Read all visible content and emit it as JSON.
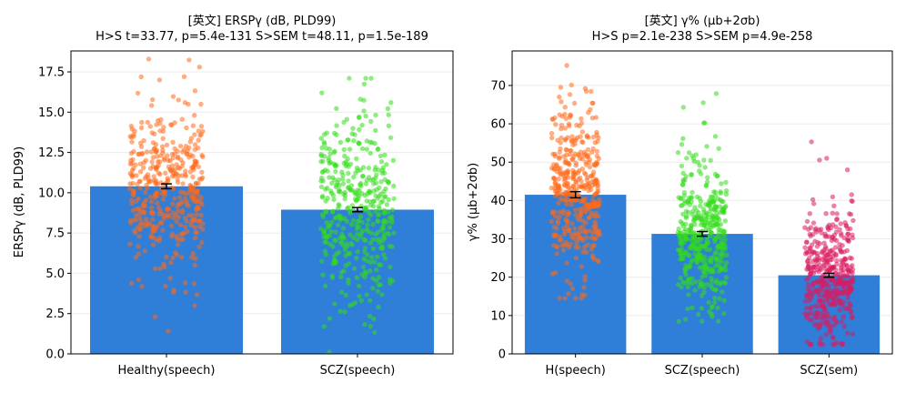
{
  "chart_data": [
    {
      "type": "bar",
      "title": "[英文] ERSPγ (dB, PLD99)",
      "subtitle": "H>S t=33.77, p=5.4e-131 S>SEM t=48.11, p=1.5e-189",
      "xlabel": "",
      "ylabel": "ERSPγ (dB, PLD99)",
      "categories": [
        "Healthy(speech)",
        "SCZ(speech)"
      ],
      "values": [
        10.4,
        8.95
      ],
      "errors": [
        0.15,
        0.13
      ],
      "ylim": [
        0,
        18.8
      ],
      "yticks": [
        0.0,
        2.5,
        5.0,
        7.5,
        10.0,
        12.5,
        15.0,
        17.5
      ],
      "ytick_labels": [
        "0.0",
        "2.5",
        "5.0",
        "7.5",
        "10.0",
        "12.5",
        "15.0",
        "17.5"
      ],
      "grid": "horizontal",
      "colors": {
        "bar": "#2f7ed8",
        "points": [
          "#ff6a1a",
          "#33dd1a"
        ]
      },
      "scatter": [
        {
          "n": 420,
          "center": 10.4,
          "spread": 2.6,
          "min": 1.2,
          "max": 18.3,
          "extremes": [
            18.3,
            17.8,
            17.2,
            17.0,
            2.3,
            1.4,
            3.0,
            4.2
          ]
        },
        {
          "n": 420,
          "center": 8.95,
          "spread": 2.9,
          "min": 0.1,
          "max": 17.1,
          "extremes": [
            17.1,
            16.2,
            15.6,
            1.7,
            0.1,
            2.6,
            3.3
          ]
        }
      ]
    },
    {
      "type": "bar",
      "title": "[英文] γ% (μb+2σb)",
      "subtitle": "H>S p=2.1e-238  S>SEM p=4.9e-258",
      "xlabel": "",
      "ylabel": "γ% (μb+2σb)",
      "categories": [
        "H(speech)",
        "SCZ(speech)",
        "SCZ(sem)"
      ],
      "values": [
        41.5,
        31.3,
        20.5
      ],
      "errors": [
        0.8,
        0.6,
        0.5
      ],
      "ylim": [
        0,
        79
      ],
      "yticks": [
        0,
        10,
        20,
        30,
        40,
        50,
        60,
        70
      ],
      "ytick_labels": [
        "0",
        "10",
        "20",
        "30",
        "40",
        "50",
        "60",
        "70"
      ],
      "grid": "horizontal",
      "colors": {
        "bar": "#2f7ed8",
        "points": [
          "#ff6a1a",
          "#33dd1a",
          "#d81b60"
        ]
      },
      "scatter": [
        {
          "n": 420,
          "center": 41.5,
          "spread": 10.5,
          "min": 14.5,
          "max": 75.2,
          "extremes": [
            75.2,
            70.1,
            68.5,
            15.3,
            17.0
          ]
        },
        {
          "n": 420,
          "center": 31.3,
          "spread": 10.0,
          "min": 8.5,
          "max": 67.9,
          "extremes": [
            67.9,
            65.5,
            60.2,
            9.0,
            10.5
          ]
        },
        {
          "n": 420,
          "center": 20.5,
          "spread": 8.5,
          "min": 2.5,
          "max": 55.3,
          "extremes": [
            55.3,
            51.0,
            48.0,
            2.6,
            4.0
          ]
        }
      ]
    }
  ]
}
